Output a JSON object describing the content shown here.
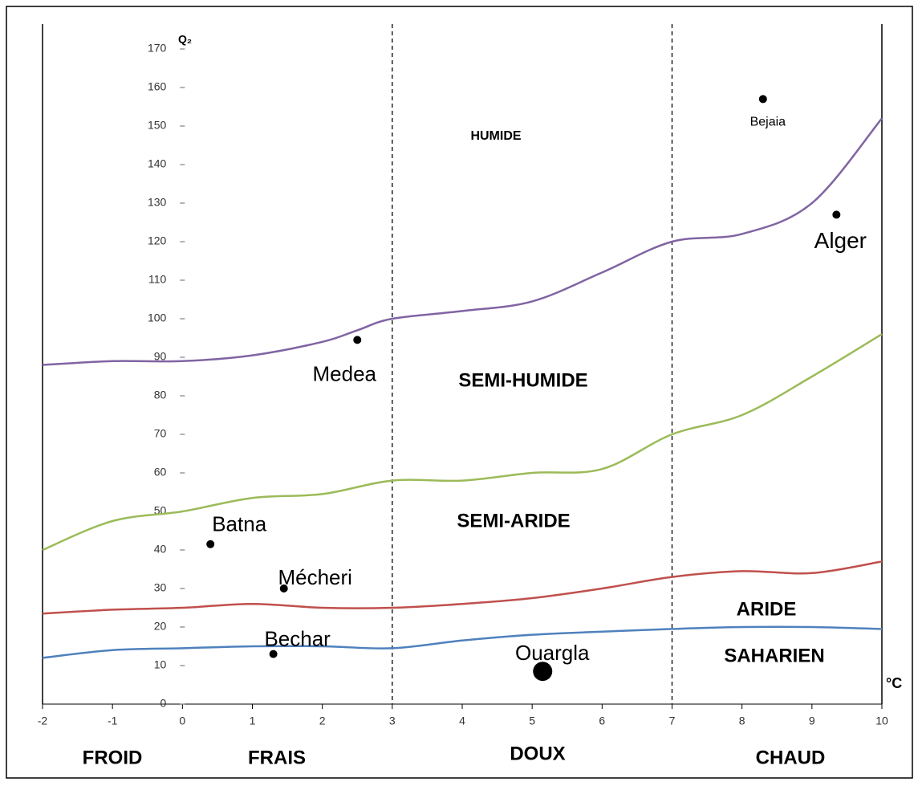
{
  "chart_data": {
    "type": "scatter",
    "y_label": "Q₂",
    "x_label": "°C",
    "xlim": [
      -2,
      10
    ],
    "ylim": [
      0,
      170
    ],
    "xticks": [
      -2,
      -1,
      0,
      1,
      2,
      3,
      4,
      5,
      6,
      7,
      8,
      9,
      10
    ],
    "yticks": [
      0,
      10,
      20,
      30,
      40,
      50,
      60,
      70,
      80,
      90,
      100,
      110,
      120,
      130,
      140,
      150,
      160,
      170
    ],
    "dividers": [
      3,
      7
    ],
    "lines": [
      {
        "color": "#8064a2",
        "x": [
          -2,
          -1,
          0,
          1,
          2,
          2.5,
          3,
          4,
          5,
          6,
          7,
          8,
          9,
          10
        ],
        "values": [
          88,
          89,
          89,
          90.5,
          94,
          97,
          100,
          102,
          104.5,
          112,
          120,
          122,
          130,
          152
        ]
      },
      {
        "color": "#9bbb59",
        "x": [
          -2,
          -1,
          0,
          1,
          2,
          3,
          4,
          5,
          6,
          7,
          8,
          9,
          10
        ],
        "values": [
          40,
          47.5,
          50,
          53.5,
          54.5,
          58,
          58,
          60,
          61,
          70,
          75,
          85,
          96
        ]
      },
      {
        "color": "#c0504d",
        "x": [
          -2,
          -1,
          0,
          1,
          2,
          3,
          4,
          5,
          6,
          7,
          8,
          9,
          10
        ],
        "values": [
          23.5,
          24.5,
          25,
          26,
          25,
          25,
          26,
          27.5,
          30,
          33,
          34.5,
          34,
          37
        ]
      },
      {
        "color": "#4f81bd",
        "x": [
          -2,
          -1,
          0,
          1,
          2,
          3,
          4,
          5,
          6,
          7,
          8,
          9,
          10
        ],
        "values": [
          12,
          14,
          14.5,
          15,
          15,
          14.5,
          16.5,
          18,
          18.8,
          19.5,
          20,
          20,
          19.5
        ]
      }
    ],
    "points": [
      {
        "label": "Bejaia",
        "x": 8.3,
        "y": 157,
        "size": 5
      },
      {
        "label": "Alger",
        "x": 9.35,
        "y": 127,
        "size": 5
      },
      {
        "label": "Medea",
        "x": 2.5,
        "y": 94.5,
        "size": 5
      },
      {
        "label": "Batna",
        "x": 0.4,
        "y": 41.5,
        "size": 5
      },
      {
        "label": "Mécheri",
        "x": 1.45,
        "y": 30,
        "size": 5
      },
      {
        "label": "Bechar",
        "x": 1.3,
        "y": 13,
        "size": 5
      },
      {
        "label": "Ouargla",
        "x": 5.15,
        "y": 8.5,
        "size": 12
      }
    ],
    "zones": [
      "HUMIDE",
      "SEMI-HUMIDE",
      "SEMI-ARIDE",
      "ARIDE",
      "SAHARIEN"
    ],
    "temperature_classes": [
      "FROID",
      "FRAIS",
      "DOUX",
      "CHAUD"
    ]
  }
}
